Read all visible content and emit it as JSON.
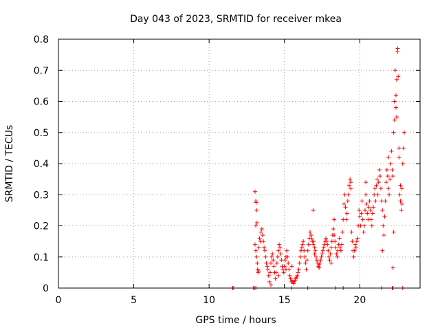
{
  "chart_data": {
    "type": "scatter",
    "title": "Day 043 of 2023, SRMTID for receiver mkea",
    "xlabel": "GPS time / hours",
    "ylabel": "SRMTID / TECUs",
    "xlim": [
      0,
      24
    ],
    "ylim": [
      0,
      0.8
    ],
    "xticks": [
      0,
      5,
      10,
      15,
      20
    ],
    "yticks": [
      0,
      0.1,
      0.2,
      0.3,
      0.4,
      0.5,
      0.6,
      0.7,
      0.8
    ],
    "xtick_labels": [
      "0",
      "5",
      "10",
      "15",
      "20"
    ],
    "ytick_labels": [
      "0",
      "0.1",
      "0.2",
      "0.3",
      "0.4",
      "0.5",
      "0.6",
      "0.7",
      "0.8"
    ],
    "grid": true,
    "marker": "+",
    "color": "#ff0000",
    "series": [
      {
        "name": "SRMTID",
        "points": [
          [
            11.55,
            0.0
          ],
          [
            11.6,
            0.0
          ],
          [
            12.95,
            0.0
          ],
          [
            13.0,
            0.0
          ],
          [
            13.1,
            0.0
          ],
          [
            15.45,
            0.0
          ],
          [
            16.55,
            0.0
          ],
          [
            18.4,
            0.0
          ],
          [
            18.9,
            0.0
          ],
          [
            21.45,
            0.0
          ],
          [
            22.15,
            0.0
          ],
          [
            22.2,
            0.0
          ],
          [
            22.85,
            0.0
          ],
          [
            13.05,
            0.31
          ],
          [
            13.1,
            0.28
          ],
          [
            13.12,
            0.275
          ],
          [
            13.15,
            0.25
          ],
          [
            13.18,
            0.21
          ],
          [
            13.1,
            0.2
          ],
          [
            13.05,
            0.14
          ],
          [
            13.1,
            0.12
          ],
          [
            13.15,
            0.1
          ],
          [
            13.2,
            0.08
          ],
          [
            13.22,
            0.06
          ],
          [
            13.25,
            0.05
          ],
          [
            13.28,
            0.055
          ],
          [
            13.3,
            0.13
          ],
          [
            13.35,
            0.16
          ],
          [
            13.4,
            0.15
          ],
          [
            13.45,
            0.18
          ],
          [
            13.5,
            0.19
          ],
          [
            13.55,
            0.17
          ],
          [
            13.6,
            0.15
          ],
          [
            13.65,
            0.13
          ],
          [
            13.7,
            0.12
          ],
          [
            13.75,
            0.1
          ],
          [
            13.8,
            0.08
          ],
          [
            13.85,
            0.07
          ],
          [
            13.9,
            0.06
          ],
          [
            13.95,
            0.04
          ],
          [
            14.0,
            0.02
          ],
          [
            14.05,
            0.05
          ],
          [
            14.1,
            0.08
          ],
          [
            14.15,
            0.1
          ],
          [
            14.2,
            0.11
          ],
          [
            14.25,
            0.09
          ],
          [
            14.3,
            0.07
          ],
          [
            14.35,
            0.05
          ],
          [
            14.4,
            0.03
          ],
          [
            14.45,
            0.05
          ],
          [
            14.5,
            0.08
          ],
          [
            14.55,
            0.1
          ],
          [
            14.6,
            0.12
          ],
          [
            14.65,
            0.14
          ],
          [
            14.7,
            0.13
          ],
          [
            14.75,
            0.11
          ],
          [
            14.8,
            0.09
          ],
          [
            14.85,
            0.07
          ],
          [
            14.9,
            0.06
          ],
          [
            14.95,
            0.05
          ],
          [
            15.0,
            0.07
          ],
          [
            15.05,
            0.09
          ],
          [
            15.1,
            0.1
          ],
          [
            15.15,
            0.12
          ],
          [
            15.2,
            0.1
          ],
          [
            15.25,
            0.08
          ],
          [
            15.3,
            0.06
          ],
          [
            15.35,
            0.04
          ],
          [
            15.4,
            0.03
          ],
          [
            15.45,
            0.02
          ],
          [
            15.5,
            0.025
          ],
          [
            15.55,
            0.02
          ],
          [
            15.6,
            0.015
          ],
          [
            15.65,
            0.02
          ],
          [
            15.7,
            0.025
          ],
          [
            15.75,
            0.03
          ],
          [
            15.8,
            0.035
          ],
          [
            15.85,
            0.04
          ],
          [
            15.9,
            0.05
          ],
          [
            15.95,
            0.06
          ],
          [
            16.0,
            0.08
          ],
          [
            16.05,
            0.1
          ],
          [
            16.1,
            0.12
          ],
          [
            16.15,
            0.13
          ],
          [
            16.2,
            0.14
          ],
          [
            16.25,
            0.15
          ],
          [
            16.3,
            0.12
          ],
          [
            16.35,
            0.1
          ],
          [
            16.4,
            0.08
          ],
          [
            16.45,
            0.06
          ],
          [
            16.5,
            0.09
          ],
          [
            16.55,
            0.12
          ],
          [
            16.6,
            0.14
          ],
          [
            16.65,
            0.16
          ],
          [
            16.7,
            0.18
          ],
          [
            16.75,
            0.17
          ],
          [
            16.8,
            0.16
          ],
          [
            16.85,
            0.15
          ],
          [
            16.9,
            0.14
          ],
          [
            16.95,
            0.15
          ],
          [
            17.0,
            0.13
          ],
          [
            17.05,
            0.12
          ],
          [
            17.1,
            0.1
          ],
          [
            17.15,
            0.09
          ],
          [
            17.2,
            0.08
          ],
          [
            17.25,
            0.07
          ],
          [
            17.3,
            0.075
          ],
          [
            17.35,
            0.08
          ],
          [
            17.4,
            0.09
          ],
          [
            17.45,
            0.1
          ],
          [
            17.5,
            0.11
          ],
          [
            17.55,
            0.12
          ],
          [
            17.6,
            0.13
          ],
          [
            17.65,
            0.14
          ],
          [
            17.7,
            0.15
          ],
          [
            17.75,
            0.16
          ],
          [
            17.8,
            0.15
          ],
          [
            17.85,
            0.14
          ],
          [
            17.9,
            0.12
          ],
          [
            17.95,
            0.1
          ],
          [
            18.0,
            0.09
          ],
          [
            18.05,
            0.11
          ],
          [
            18.1,
            0.13
          ],
          [
            18.15,
            0.15
          ],
          [
            18.2,
            0.17
          ],
          [
            18.25,
            0.19
          ],
          [
            18.3,
            0.17
          ],
          [
            18.35,
            0.15
          ],
          [
            18.4,
            0.13
          ],
          [
            18.45,
            0.11
          ],
          [
            18.5,
            0.1
          ],
          [
            18.55,
            0.12
          ],
          [
            18.6,
            0.14
          ],
          [
            18.65,
            0.16
          ],
          [
            18.7,
            0.13
          ],
          [
            18.75,
            0.12
          ],
          [
            18.8,
            0.14
          ],
          [
            18.85,
            0.18
          ],
          [
            18.9,
            0.22
          ],
          [
            18.95,
            0.27
          ],
          [
            19.0,
            0.3
          ],
          [
            19.05,
            0.26
          ],
          [
            19.1,
            0.22
          ],
          [
            19.15,
            0.24
          ],
          [
            19.2,
            0.28
          ],
          [
            19.25,
            0.3
          ],
          [
            19.3,
            0.33
          ],
          [
            19.35,
            0.35
          ],
          [
            19.4,
            0.32
          ],
          [
            19.45,
            0.18
          ],
          [
            19.5,
            0.15
          ],
          [
            19.55,
            0.12
          ],
          [
            19.6,
            0.1
          ],
          [
            19.65,
            0.12
          ],
          [
            19.7,
            0.14
          ],
          [
            19.75,
            0.13
          ],
          [
            19.8,
            0.15
          ],
          [
            19.85,
            0.16
          ],
          [
            19.9,
            0.2
          ],
          [
            19.95,
            0.25
          ],
          [
            20.0,
            0.23
          ],
          [
            20.05,
            0.2
          ],
          [
            20.1,
            0.24
          ],
          [
            20.15,
            0.28
          ],
          [
            20.2,
            0.22
          ],
          [
            20.25,
            0.18
          ],
          [
            20.3,
            0.2
          ],
          [
            20.35,
            0.25
          ],
          [
            20.4,
            0.3
          ],
          [
            20.45,
            0.27
          ],
          [
            20.5,
            0.24
          ],
          [
            20.55,
            0.22
          ],
          [
            20.6,
            0.26
          ],
          [
            20.65,
            0.28
          ],
          [
            20.7,
            0.25
          ],
          [
            20.75,
            0.22
          ],
          [
            20.8,
            0.2
          ],
          [
            20.85,
            0.24
          ],
          [
            20.9,
            0.26
          ],
          [
            20.95,
            0.3
          ],
          [
            21.0,
            0.32
          ],
          [
            21.05,
            0.28
          ],
          [
            21.1,
            0.33
          ],
          [
            21.15,
            0.35
          ],
          [
            21.2,
            0.3
          ],
          [
            21.25,
            0.34
          ],
          [
            21.3,
            0.38
          ],
          [
            21.35,
            0.36
          ],
          [
            21.4,
            0.32
          ],
          [
            21.45,
            0.28
          ],
          [
            21.5,
            0.25
          ],
          [
            21.55,
            0.2
          ],
          [
            21.6,
            0.17
          ],
          [
            21.65,
            0.23
          ],
          [
            21.7,
            0.28
          ],
          [
            21.75,
            0.34
          ],
          [
            21.8,
            0.38
          ],
          [
            21.85,
            0.36
          ],
          [
            21.9,
            0.32
          ],
          [
            21.95,
            0.3
          ],
          [
            22.0,
            0.35
          ],
          [
            22.05,
            0.4
          ],
          [
            22.1,
            0.44
          ],
          [
            22.15,
            0.38
          ],
          [
            22.2,
            0.36
          ],
          [
            22.25,
            0.5
          ],
          [
            22.3,
            0.6
          ],
          [
            22.35,
            0.7
          ],
          [
            22.4,
            0.62
          ],
          [
            22.45,
            0.55
          ],
          [
            22.5,
            0.76
          ],
          [
            22.52,
            0.77
          ],
          [
            22.55,
            0.68
          ],
          [
            22.6,
            0.42
          ],
          [
            22.65,
            0.3
          ],
          [
            22.7,
            0.28
          ],
          [
            22.75,
            0.25
          ],
          [
            22.8,
            0.27
          ],
          [
            22.85,
            0.4
          ],
          [
            22.9,
            0.45
          ],
          [
            22.95,
            0.5
          ],
          [
            14.1,
            0.01
          ],
          [
            14.6,
            0.04
          ],
          [
            15.1,
            0.06
          ],
          [
            15.5,
            0.07
          ],
          [
            16.9,
            0.25
          ],
          [
            17.0,
            0.11
          ],
          [
            17.3,
            0.065
          ],
          [
            18.1,
            0.08
          ],
          [
            18.3,
            0.22
          ],
          [
            19.4,
            0.34
          ],
          [
            20.4,
            0.34
          ],
          [
            21.5,
            0.12
          ],
          [
            21.9,
            0.42
          ],
          [
            22.2,
            0.065
          ],
          [
            22.25,
            0.18
          ],
          [
            22.3,
            0.54
          ],
          [
            22.4,
            0.58
          ],
          [
            22.45,
            0.67
          ],
          [
            22.6,
            0.45
          ],
          [
            22.7,
            0.33
          ],
          [
            22.8,
            0.32
          ]
        ]
      }
    ]
  }
}
